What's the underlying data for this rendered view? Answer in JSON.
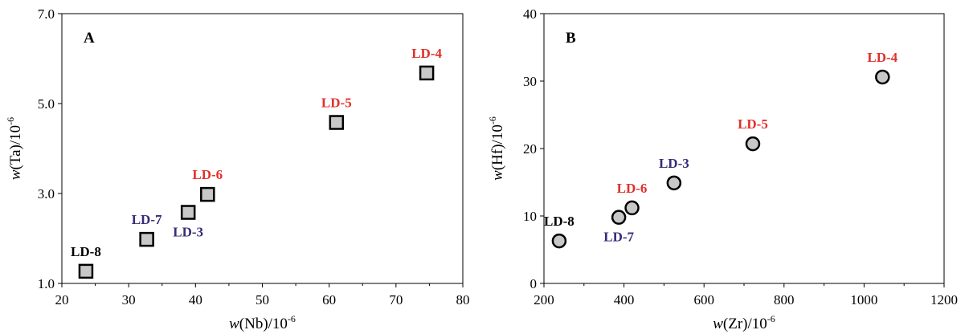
{
  "chart_data": [
    {
      "type": "scatter",
      "panel": "A",
      "xlabel": {
        "pre": "w",
        "main": "(Nb)/10",
        "sup": "-6"
      },
      "ylabel": {
        "pre": "w",
        "main": "(Ta)/10",
        "sup": "-6"
      },
      "xlim": [
        20,
        80
      ],
      "ylim": [
        1.0,
        7.0
      ],
      "xticks": [
        20,
        30,
        40,
        50,
        60,
        70,
        80
      ],
      "yticks": [
        1.0,
        3.0,
        5.0,
        7.0
      ],
      "ytick_labels": [
        "1.0",
        "3.0",
        "5.0",
        "7.0"
      ],
      "marker": "square",
      "marker_fill": "#c8c8c8",
      "points": [
        {
          "label": "LD-8",
          "x": 23.6,
          "y": 1.27,
          "color": "#000000",
          "label_pos": "above"
        },
        {
          "label": "LD-7",
          "x": 32.7,
          "y": 1.98,
          "color": "#3a2a7a",
          "label_pos": "above"
        },
        {
          "label": "LD-3",
          "x": 38.9,
          "y": 2.58,
          "color": "#3a2a7a",
          "label_pos": "below"
        },
        {
          "label": "LD-6",
          "x": 41.8,
          "y": 2.98,
          "color": "#e0312b",
          "label_pos": "above"
        },
        {
          "label": "LD-5",
          "x": 61.1,
          "y": 4.58,
          "color": "#e0312b",
          "label_pos": "above"
        },
        {
          "label": "LD-4",
          "x": 74.6,
          "y": 5.68,
          "color": "#e0312b",
          "label_pos": "above"
        }
      ]
    },
    {
      "type": "scatter",
      "panel": "B",
      "xlabel": {
        "pre": "w",
        "main": "(Zr)/10",
        "sup": "-6"
      },
      "ylabel": {
        "pre": "w",
        "main": "(Hf)/10",
        "sup": "-6"
      },
      "xlim": [
        200,
        1200
      ],
      "ylim": [
        0,
        40
      ],
      "xticks": [
        200,
        400,
        600,
        800,
        1000,
        1200
      ],
      "yticks": [
        0,
        10,
        20,
        30,
        40
      ],
      "ytick_labels": [
        "0",
        "10",
        "20",
        "30",
        "40"
      ],
      "marker": "circle",
      "marker_fill": "#c8c8c8",
      "points": [
        {
          "label": "LD-8",
          "x": 238,
          "y": 6.3,
          "color": "#000000",
          "label_pos": "above"
        },
        {
          "label": "LD-7",
          "x": 387,
          "y": 9.8,
          "color": "#3a2a7a",
          "label_pos": "below"
        },
        {
          "label": "LD-6",
          "x": 420,
          "y": 11.2,
          "color": "#e0312b",
          "label_pos": "above"
        },
        {
          "label": "LD-3",
          "x": 525,
          "y": 14.9,
          "color": "#3a2a7a",
          "label_pos": "above"
        },
        {
          "label": "LD-5",
          "x": 722,
          "y": 20.7,
          "color": "#e0312b",
          "label_pos": "above"
        },
        {
          "label": "LD-4",
          "x": 1046,
          "y": 30.6,
          "color": "#e0312b",
          "label_pos": "above"
        }
      ]
    }
  ]
}
